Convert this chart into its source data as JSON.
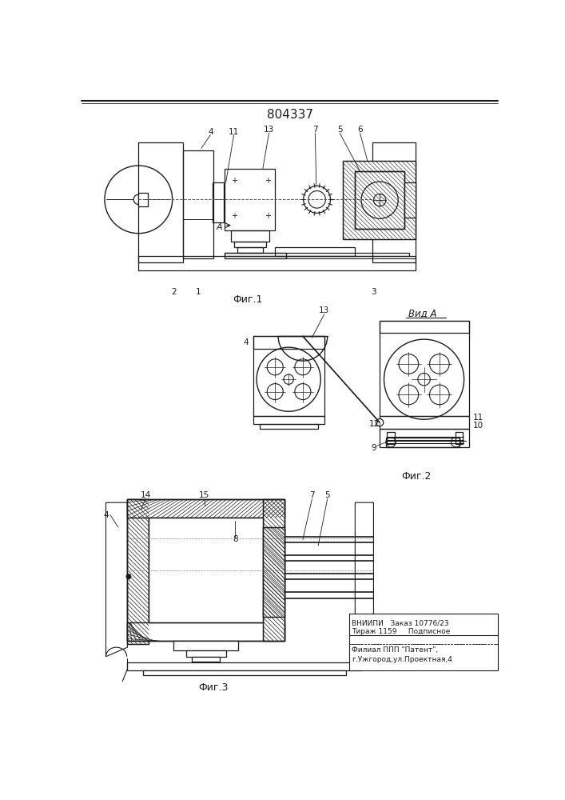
{
  "patent_number": "804337",
  "fig1_caption": "Фиг.1",
  "fig2_caption": "Фиг.2",
  "fig3_caption": "Фиг.3",
  "view_a_label": "Вид А",
  "vniiipi_line1": "ВНИИПИ   Заказ 10776/23",
  "vniiipi_line2": "Тираж 1159     Подписное",
  "filial_line1": "Филиал ППП \"Патент\",",
  "filial_line2": "г.Ужгород,ул.Проектная,4",
  "bg_color": "#ffffff",
  "lc": "#1a1a1a"
}
